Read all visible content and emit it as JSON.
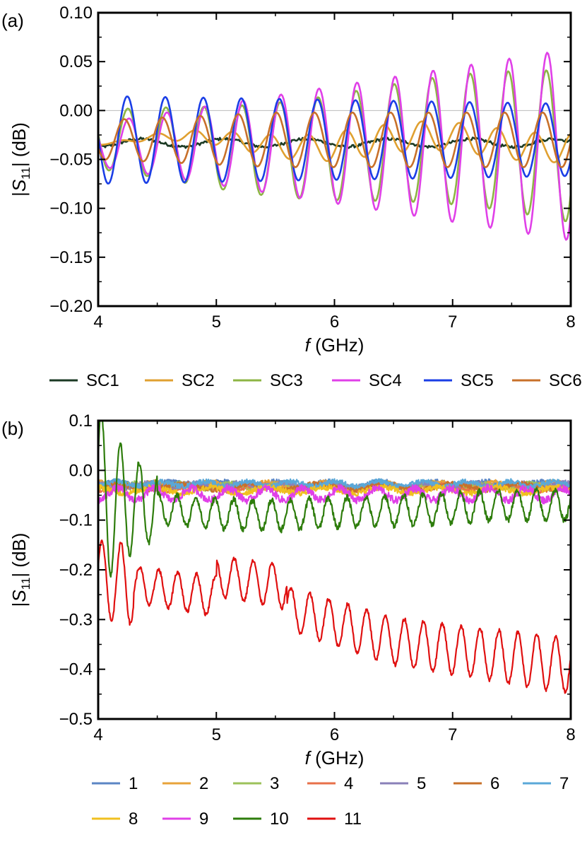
{
  "chart_data": [
    {
      "panel_label": "(a)",
      "type": "line",
      "xlabel_italic": "f",
      "xlabel_rest": " (GHz)",
      "ylabel_prefix": "|S",
      "ylabel_sub": "11",
      "ylabel_suffix": "| (dB)",
      "xlim": [
        4,
        8
      ],
      "ylim": [
        -0.2,
        0.1
      ],
      "xticks": [
        4,
        5,
        6,
        7,
        8
      ],
      "xtick_labels": [
        "4",
        "5",
        "6",
        "7",
        "8"
      ],
      "yticks": [
        0.1,
        0.05,
        0.0,
        -0.05,
        -0.1,
        -0.15,
        -0.2
      ],
      "ytick_labels": [
        "0.10",
        "0.05",
        "0.00",
        "−0.05",
        "−0.10",
        "−0.15",
        "−0.20"
      ],
      "zero_line": true,
      "legend_placement": "below",
      "series": [
        {
          "name": "SC1",
          "color": "#1b3a24"
        },
        {
          "name": "SC2",
          "color": "#e0a030"
        },
        {
          "name": "SC3",
          "color": "#8db544"
        },
        {
          "name": "SC4",
          "color": "#e040e8"
        },
        {
          "name": "SC5",
          "color": "#1a3ee6"
        },
        {
          "name": "SC6",
          "color": "#c8702a"
        }
      ]
    },
    {
      "panel_label": "(b)",
      "type": "line",
      "xlabel_italic": "f",
      "xlabel_rest": " (GHz)",
      "ylabel_prefix": "|S",
      "ylabel_sub": "11",
      "ylabel_suffix": "| (dB)",
      "xlim": [
        4,
        8
      ],
      "ylim": [
        -0.5,
        0.1
      ],
      "xticks": [
        4,
        5,
        6,
        7,
        8
      ],
      "xtick_labels": [
        "4",
        "5",
        "6",
        "7",
        "8"
      ],
      "yticks": [
        0.1,
        0.0,
        -0.1,
        -0.2,
        -0.3,
        -0.4,
        -0.5
      ],
      "ytick_labels": [
        "0.1",
        "0.0",
        "−0.1",
        "−0.2",
        "−0.3",
        "−0.4",
        "−0.5"
      ],
      "zero_line": true,
      "legend_placement": "below",
      "series": [
        {
          "name": "1",
          "color": "#5b86c4"
        },
        {
          "name": "2",
          "color": "#e8a33a"
        },
        {
          "name": "3",
          "color": "#9cc25a"
        },
        {
          "name": "4",
          "color": "#e8704a"
        },
        {
          "name": "5",
          "color": "#8a80b8"
        },
        {
          "name": "6",
          "color": "#c8702a"
        },
        {
          "name": "7",
          "color": "#5aa8d8"
        },
        {
          "name": "8",
          "color": "#f0c020"
        },
        {
          "name": "9",
          "color": "#e040e8"
        },
        {
          "name": "10",
          "color": "#2e7d0c"
        },
        {
          "name": "11",
          "color": "#e01010"
        }
      ]
    }
  ]
}
